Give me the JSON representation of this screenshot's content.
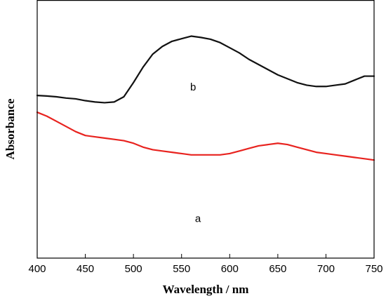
{
  "chart_data": {
    "type": "line",
    "title": "",
    "xlabel": "Wavelength / nm",
    "ylabel": "Absorbance",
    "xlim": [
      400,
      750
    ],
    "ylim": [
      0,
      1
    ],
    "x_ticks": [
      400,
      450,
      500,
      550,
      600,
      650,
      700,
      750
    ],
    "y_ticks": [],
    "grid": false,
    "legend": "none",
    "series": [
      {
        "name": "a",
        "color": "#e8231f",
        "label_at": [
          567,
          0.14
        ],
        "points": [
          [
            400,
            0.565
          ],
          [
            410,
            0.55
          ],
          [
            420,
            0.53
          ],
          [
            430,
            0.51
          ],
          [
            440,
            0.49
          ],
          [
            450,
            0.475
          ],
          [
            460,
            0.47
          ],
          [
            470,
            0.465
          ],
          [
            480,
            0.46
          ],
          [
            490,
            0.455
          ],
          [
            500,
            0.445
          ],
          [
            510,
            0.43
          ],
          [
            520,
            0.42
          ],
          [
            530,
            0.415
          ],
          [
            540,
            0.41
          ],
          [
            550,
            0.405
          ],
          [
            560,
            0.4
          ],
          [
            570,
            0.4
          ],
          [
            580,
            0.4
          ],
          [
            590,
            0.4
          ],
          [
            600,
            0.405
          ],
          [
            610,
            0.415
          ],
          [
            620,
            0.425
          ],
          [
            630,
            0.435
          ],
          [
            640,
            0.44
          ],
          [
            650,
            0.445
          ],
          [
            660,
            0.44
          ],
          [
            670,
            0.43
          ],
          [
            680,
            0.42
          ],
          [
            690,
            0.41
          ],
          [
            700,
            0.405
          ],
          [
            710,
            0.4
          ],
          [
            720,
            0.395
          ],
          [
            730,
            0.39
          ],
          [
            740,
            0.385
          ],
          [
            750,
            0.38
          ]
        ]
      },
      {
        "name": "b",
        "color": "#111111",
        "label_at": [
          562,
          0.65
        ],
        "points": [
          [
            400,
            0.63
          ],
          [
            410,
            0.628
          ],
          [
            420,
            0.625
          ],
          [
            430,
            0.62
          ],
          [
            440,
            0.617
          ],
          [
            450,
            0.61
          ],
          [
            460,
            0.605
          ],
          [
            470,
            0.602
          ],
          [
            480,
            0.605
          ],
          [
            490,
            0.625
          ],
          [
            500,
            0.68
          ],
          [
            510,
            0.74
          ],
          [
            520,
            0.79
          ],
          [
            530,
            0.82
          ],
          [
            540,
            0.84
          ],
          [
            550,
            0.85
          ],
          [
            560,
            0.86
          ],
          [
            570,
            0.855
          ],
          [
            580,
            0.848
          ],
          [
            590,
            0.835
          ],
          [
            600,
            0.815
          ],
          [
            610,
            0.795
          ],
          [
            620,
            0.77
          ],
          [
            630,
            0.75
          ],
          [
            640,
            0.73
          ],
          [
            650,
            0.71
          ],
          [
            660,
            0.695
          ],
          [
            670,
            0.68
          ],
          [
            680,
            0.67
          ],
          [
            690,
            0.665
          ],
          [
            700,
            0.665
          ],
          [
            710,
            0.67
          ],
          [
            720,
            0.675
          ],
          [
            730,
            0.69
          ],
          [
            740,
            0.705
          ],
          [
            750,
            0.705
          ]
        ]
      }
    ]
  }
}
